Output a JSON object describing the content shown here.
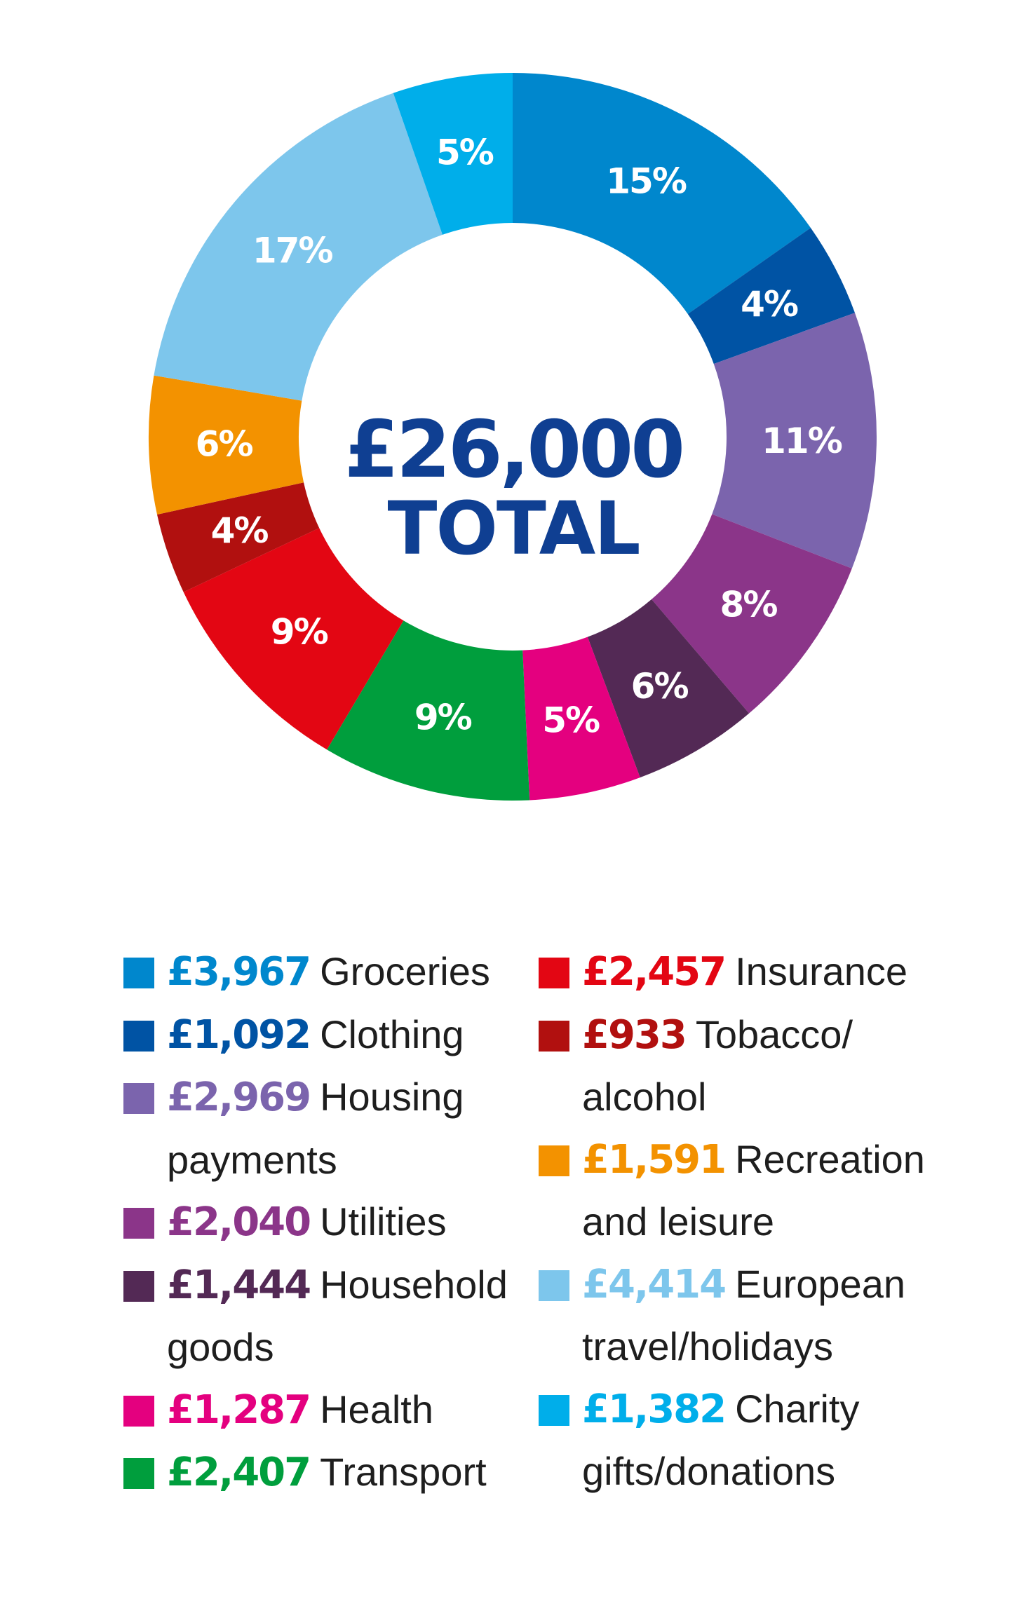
{
  "chart_data": {
    "type": "pie",
    "style": "donut",
    "title": "",
    "center_amount": "£26,000",
    "center_label": "TOTAL",
    "total": 26000,
    "slices": [
      {
        "label": "Groceries",
        "amount": 3967,
        "amount_text": "£3,967",
        "percent_text": "15%",
        "color": "#0087cd"
      },
      {
        "label": "Clothing",
        "amount": 1092,
        "amount_text": "£1,092",
        "percent_text": "4%",
        "color": "#0053a4"
      },
      {
        "label": "Housing payments",
        "amount": 2969,
        "amount_text": "£2,969",
        "percent_text": "11%",
        "color": "#7b64ad"
      },
      {
        "label": "Utilities",
        "amount": 2040,
        "amount_text": "£2,040",
        "percent_text": "8%",
        "color": "#8b3589"
      },
      {
        "label": "Household goods",
        "amount": 1444,
        "amount_text": "£1,444",
        "percent_text": "6%",
        "color": "#532955"
      },
      {
        "label": "Health",
        "amount": 1287,
        "amount_text": "£1,287",
        "percent_text": "5%",
        "color": "#e4007f"
      },
      {
        "label": "Transport",
        "amount": 2407,
        "amount_text": "£2,407",
        "percent_text": "9%",
        "color": "#009e3d"
      },
      {
        "label": "Insurance",
        "amount": 2457,
        "amount_text": "£2,457",
        "percent_text": "9%",
        "color": "#e30613"
      },
      {
        "label": "Tobacco/ alcohol",
        "amount": 933,
        "amount_text": "£933",
        "percent_text": "4%",
        "color": "#b1100f"
      },
      {
        "label": "Recreation and leisure",
        "amount": 1591,
        "amount_text": "£1,591",
        "percent_text": "6%",
        "color": "#f39200"
      },
      {
        "label": "European travel/holidays",
        "amount": 4414,
        "amount_text": "£4,414",
        "percent_text": "17%",
        "color": "#7dc6ec"
      },
      {
        "label": "Charity gifts/donations",
        "amount": 1382,
        "amount_text": "£1,382",
        "percent_text": "5%",
        "color": "#00aeea"
      }
    ],
    "legend": {
      "placement": "bottom",
      "left": [
        0,
        1,
        2,
        3,
        4,
        5,
        6
      ],
      "right": [
        7,
        8,
        9,
        10,
        11
      ]
    }
  }
}
